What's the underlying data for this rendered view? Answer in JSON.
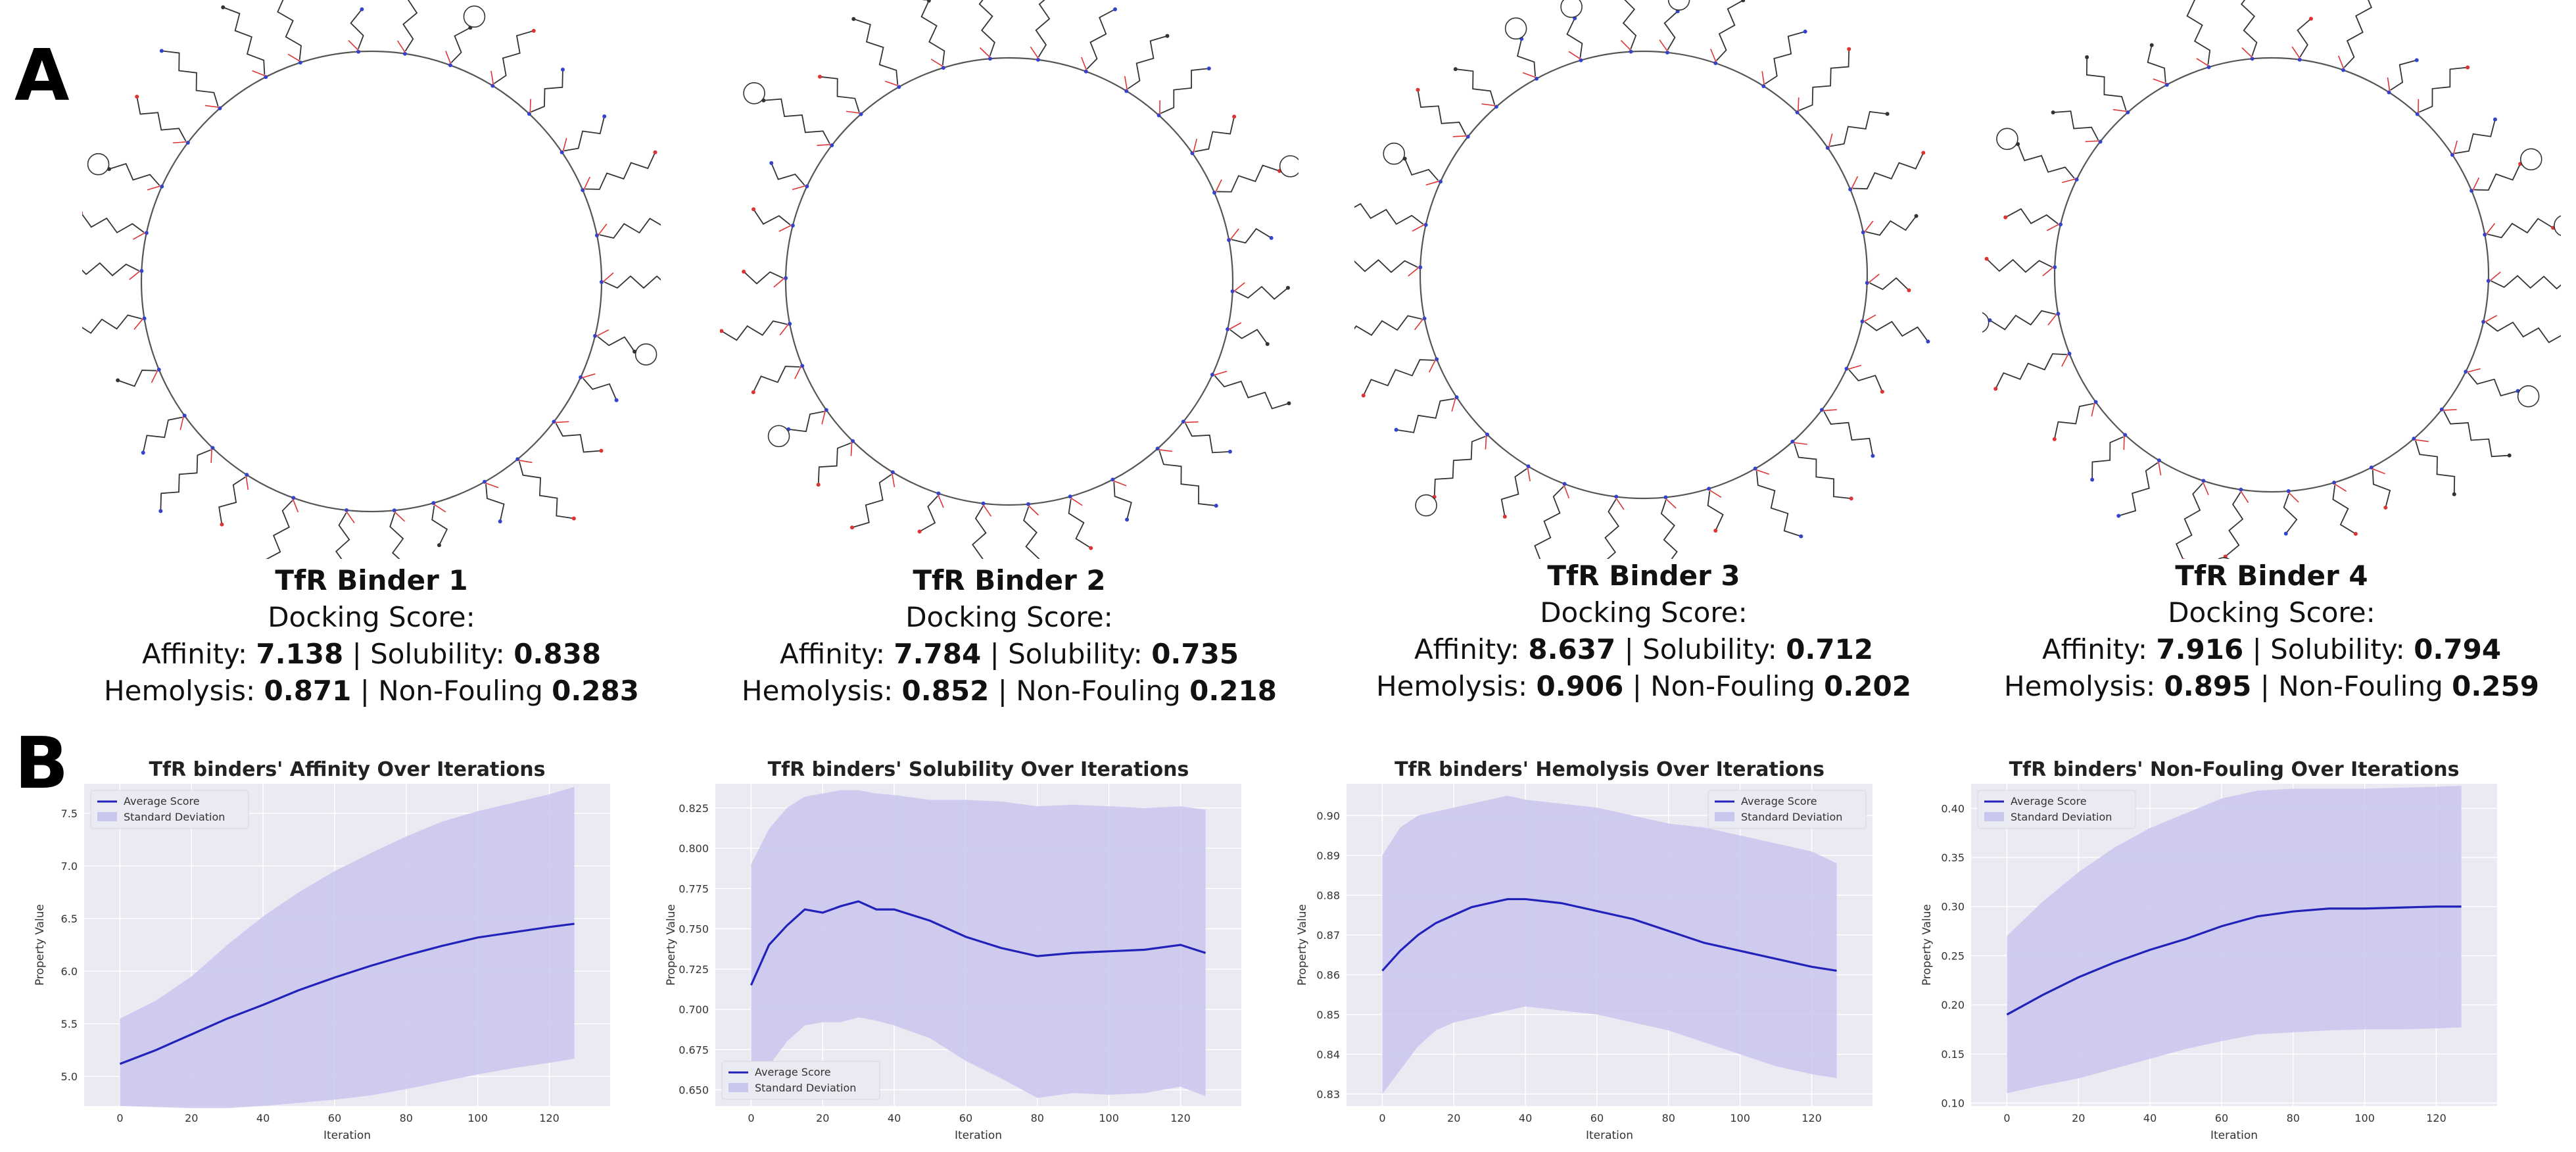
{
  "panel_labels": {
    "a": "A",
    "b": "B"
  },
  "binders": [
    {
      "title": "TfR Binder 1",
      "docking_label": "Docking Score:",
      "affinity_label": "Affinity:",
      "affinity": "7.138",
      "solubility_label": "Solubility:",
      "solubility": "0.838",
      "hemolysis_label": "Hemolysis:",
      "hemolysis": "0.871",
      "nonfouling_label": "Non-Fouling",
      "nonfouling": "0.283",
      "sep": "|"
    },
    {
      "title": "TfR Binder 2",
      "docking_label": "Docking Score:",
      "affinity_label": "Affinity:",
      "affinity": "7.784",
      "solubility_label": "Solubility:",
      "solubility": "0.735",
      "hemolysis_label": "Hemolysis:",
      "hemolysis": "0.852",
      "nonfouling_label": "Non-Fouling",
      "nonfouling": "0.218",
      "sep": "|"
    },
    {
      "title": "TfR Binder 3",
      "docking_label": "Docking Score:",
      "affinity_label": "Affinity:",
      "affinity": "8.637",
      "solubility_label": "Solubility:",
      "solubility": "0.712",
      "hemolysis_label": "Hemolysis:",
      "hemolysis": "0.906",
      "nonfouling_label": "Non-Fouling",
      "nonfouling": "0.202",
      "sep": "|"
    },
    {
      "title": "TfR Binder 4",
      "docking_label": "Docking Score:",
      "affinity_label": "Affinity:",
      "affinity": "7.916",
      "solubility_label": "Solubility:",
      "solubility": "0.794",
      "hemolysis_label": "Hemolysis:",
      "hemolysis": "0.895",
      "nonfouling_label": "Non-Fouling",
      "nonfouling": "0.259",
      "sep": "|"
    }
  ],
  "colors": {
    "line": "#2222bb",
    "band": "#c9c6ee",
    "plot_bg": "#eaeaf2",
    "grid": "#ffffff"
  },
  "chart_data": [
    {
      "type": "line",
      "title": "TfR binders' Affinity Over Iterations",
      "xlabel": "Iteration",
      "ylabel": "Property Value",
      "xlim": [
        -10,
        137
      ],
      "ylim": [
        4.72,
        7.78
      ],
      "xticks": [
        0,
        20,
        40,
        60,
        80,
        100,
        120
      ],
      "yticks": [
        5.0,
        5.5,
        6.0,
        6.5,
        7.0,
        7.5
      ],
      "ytick_decimals": 1,
      "legend": [
        "Average Score",
        "Standard Deviation"
      ],
      "legend_loc": "top-left",
      "x": [
        0,
        10,
        20,
        30,
        40,
        50,
        60,
        70,
        80,
        90,
        100,
        110,
        120,
        127
      ],
      "mean": [
        5.12,
        5.25,
        5.4,
        5.55,
        5.68,
        5.82,
        5.94,
        6.05,
        6.15,
        6.24,
        6.32,
        6.37,
        6.42,
        6.45
      ],
      "upper": [
        5.55,
        5.72,
        5.95,
        6.25,
        6.52,
        6.75,
        6.95,
        7.12,
        7.28,
        7.42,
        7.52,
        7.6,
        7.68,
        7.75
      ],
      "lower": [
        4.72,
        4.71,
        4.7,
        4.7,
        4.72,
        4.75,
        4.78,
        4.82,
        4.88,
        4.95,
        5.02,
        5.08,
        5.13,
        5.17
      ]
    },
    {
      "type": "line",
      "title": "TfR binders' Solubility Over Iterations",
      "xlabel": "Iteration",
      "ylabel": "Property Value",
      "xlim": [
        -10,
        137
      ],
      "ylim": [
        0.64,
        0.84
      ],
      "xticks": [
        0,
        20,
        40,
        60,
        80,
        100,
        120
      ],
      "yticks": [
        0.65,
        0.675,
        0.7,
        0.725,
        0.75,
        0.775,
        0.8,
        0.825
      ],
      "ytick_decimals": 3,
      "legend": [
        "Average Score",
        "Standard Deviation"
      ],
      "legend_loc": "bottom-left",
      "x": [
        0,
        5,
        10,
        15,
        20,
        25,
        30,
        35,
        40,
        50,
        60,
        70,
        80,
        90,
        100,
        110,
        120,
        127
      ],
      "mean": [
        0.715,
        0.74,
        0.752,
        0.762,
        0.76,
        0.764,
        0.767,
        0.762,
        0.762,
        0.755,
        0.745,
        0.738,
        0.733,
        0.735,
        0.736,
        0.737,
        0.74,
        0.735
      ],
      "upper": [
        0.79,
        0.812,
        0.825,
        0.832,
        0.834,
        0.836,
        0.836,
        0.834,
        0.833,
        0.83,
        0.83,
        0.829,
        0.826,
        0.827,
        0.826,
        0.825,
        0.826,
        0.824
      ],
      "lower": [
        0.648,
        0.665,
        0.68,
        0.69,
        0.692,
        0.692,
        0.695,
        0.693,
        0.69,
        0.682,
        0.668,
        0.657,
        0.645,
        0.648,
        0.647,
        0.648,
        0.652,
        0.646
      ]
    },
    {
      "type": "line",
      "title": "TfR binders' Hemolysis Over Iterations",
      "xlabel": "Iteration",
      "ylabel": "Property Value",
      "xlim": [
        -10,
        137
      ],
      "ylim": [
        0.827,
        0.908
      ],
      "xticks": [
        0,
        20,
        40,
        60,
        80,
        100,
        120
      ],
      "yticks": [
        0.83,
        0.84,
        0.85,
        0.86,
        0.87,
        0.88,
        0.89,
        0.9
      ],
      "ytick_decimals": 2,
      "legend": [
        "Average Score",
        "Standard Deviation"
      ],
      "legend_loc": "top-right",
      "x": [
        0,
        5,
        10,
        15,
        20,
        25,
        30,
        35,
        40,
        50,
        60,
        70,
        80,
        90,
        100,
        110,
        120,
        127
      ],
      "mean": [
        0.861,
        0.866,
        0.87,
        0.873,
        0.875,
        0.877,
        0.878,
        0.879,
        0.879,
        0.878,
        0.876,
        0.874,
        0.871,
        0.868,
        0.866,
        0.864,
        0.862,
        0.861
      ],
      "upper": [
        0.89,
        0.897,
        0.9,
        0.901,
        0.902,
        0.903,
        0.904,
        0.905,
        0.904,
        0.903,
        0.902,
        0.9,
        0.898,
        0.897,
        0.895,
        0.893,
        0.891,
        0.888
      ],
      "lower": [
        0.83,
        0.836,
        0.842,
        0.846,
        0.848,
        0.849,
        0.85,
        0.851,
        0.852,
        0.851,
        0.85,
        0.848,
        0.846,
        0.843,
        0.84,
        0.837,
        0.835,
        0.834
      ]
    },
    {
      "type": "line",
      "title": "TfR binders' Non-Fouling Over Iterations",
      "xlabel": "Iteration",
      "ylabel": "Property Value",
      "xlim": [
        -10,
        137
      ],
      "ylim": [
        0.097,
        0.425
      ],
      "xticks": [
        0,
        20,
        40,
        60,
        80,
        100,
        120
      ],
      "yticks": [
        0.1,
        0.15,
        0.2,
        0.25,
        0.3,
        0.35,
        0.4
      ],
      "ytick_decimals": 2,
      "legend": [
        "Average Score",
        "Standard Deviation"
      ],
      "legend_loc": "top-left",
      "x": [
        0,
        10,
        20,
        30,
        40,
        50,
        60,
        70,
        80,
        90,
        100,
        110,
        120,
        127
      ],
      "mean": [
        0.19,
        0.21,
        0.228,
        0.243,
        0.256,
        0.267,
        0.28,
        0.29,
        0.295,
        0.298,
        0.298,
        0.299,
        0.3,
        0.3
      ],
      "upper": [
        0.27,
        0.305,
        0.335,
        0.36,
        0.38,
        0.395,
        0.41,
        0.418,
        0.42,
        0.42,
        0.42,
        0.421,
        0.422,
        0.423
      ],
      "lower": [
        0.11,
        0.118,
        0.125,
        0.135,
        0.145,
        0.155,
        0.163,
        0.17,
        0.172,
        0.174,
        0.175,
        0.175,
        0.176,
        0.177
      ]
    }
  ]
}
